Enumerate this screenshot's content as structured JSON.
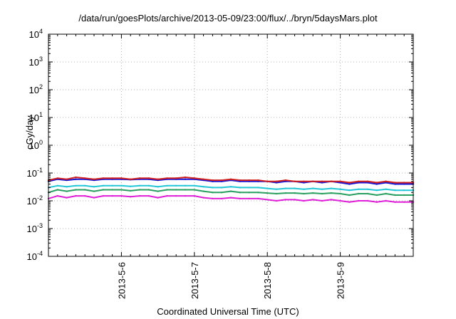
{
  "chart_data": {
    "type": "line",
    "title": "/data/run/goesPlots/archive/2013-05-09/23:00/flux/../bryn/5daysMars.plot",
    "xlabel": "Coordinated Universal Time (UTC)",
    "ylabel": "cGy/day",
    "yscale": "log",
    "ylim": [
      0.0001,
      10000
    ],
    "yticks": [
      {
        "value": 0.0001,
        "base": "10",
        "exp": "-4"
      },
      {
        "value": 0.001,
        "base": "10",
        "exp": "-3"
      },
      {
        "value": 0.01,
        "base": "10",
        "exp": "-2"
      },
      {
        "value": 0.1,
        "base": "10",
        "exp": "-1"
      },
      {
        "value": 1,
        "base": "10",
        "exp": "0"
      },
      {
        "value": 10,
        "base": "10",
        "exp": "1"
      },
      {
        "value": 100,
        "base": "10",
        "exp": "2"
      },
      {
        "value": 1000,
        "base": "10",
        "exp": "3"
      },
      {
        "value": 10000,
        "base": "10",
        "exp": "4"
      }
    ],
    "xlim": [
      "2013-05-05 00:00",
      "2013-05-10 00:00"
    ],
    "xticks": [
      "2013-5-6",
      "2013-5-7",
      "2013-5-8",
      "2013-5-9"
    ],
    "grid": true,
    "x": [
      "2013-05-05 00:00",
      "2013-05-05 03:00",
      "2013-05-05 06:00",
      "2013-05-05 09:00",
      "2013-05-05 12:00",
      "2013-05-05 15:00",
      "2013-05-05 18:00",
      "2013-05-05 21:00",
      "2013-05-06 00:00",
      "2013-05-06 03:00",
      "2013-05-06 06:00",
      "2013-05-06 09:00",
      "2013-05-06 12:00",
      "2013-05-06 15:00",
      "2013-05-06 18:00",
      "2013-05-06 21:00",
      "2013-05-07 00:00",
      "2013-05-07 03:00",
      "2013-05-07 06:00",
      "2013-05-07 09:00",
      "2013-05-07 12:00",
      "2013-05-07 15:00",
      "2013-05-07 18:00",
      "2013-05-07 21:00",
      "2013-05-08 00:00",
      "2013-05-08 03:00",
      "2013-05-08 06:00",
      "2013-05-08 09:00",
      "2013-05-08 12:00",
      "2013-05-08 15:00",
      "2013-05-08 18:00",
      "2013-05-08 21:00",
      "2013-05-09 00:00",
      "2013-05-09 03:00",
      "2013-05-09 06:00",
      "2013-05-09 09:00",
      "2013-05-09 12:00",
      "2013-05-09 15:00",
      "2013-05-09 18:00",
      "2013-05-09 21:00",
      "2013-05-10 00:00"
    ],
    "series": [
      {
        "color": "#1515d8",
        "values": [
          0.05,
          0.06,
          0.055,
          0.06,
          0.06,
          0.055,
          0.06,
          0.06,
          0.06,
          0.058,
          0.06,
          0.06,
          0.055,
          0.06,
          0.06,
          0.06,
          0.06,
          0.055,
          0.05,
          0.05,
          0.055,
          0.05,
          0.05,
          0.05,
          0.05,
          0.045,
          0.05,
          0.05,
          0.045,
          0.05,
          0.045,
          0.05,
          0.045,
          0.04,
          0.045,
          0.045,
          0.04,
          0.045,
          0.04,
          0.04,
          0.04
        ]
      },
      {
        "color": "#d02020",
        "values": [
          0.055,
          0.065,
          0.06,
          0.07,
          0.065,
          0.06,
          0.065,
          0.065,
          0.065,
          0.06,
          0.065,
          0.065,
          0.06,
          0.065,
          0.065,
          0.07,
          0.065,
          0.06,
          0.055,
          0.055,
          0.06,
          0.055,
          0.055,
          0.055,
          0.05,
          0.05,
          0.055,
          0.05,
          0.05,
          0.05,
          0.05,
          0.05,
          0.05,
          0.045,
          0.05,
          0.05,
          0.045,
          0.05,
          0.045,
          0.045,
          0.045
        ]
      },
      {
        "color": "#23c8d8",
        "values": [
          0.03,
          0.035,
          0.032,
          0.035,
          0.035,
          0.032,
          0.035,
          0.035,
          0.035,
          0.033,
          0.035,
          0.035,
          0.032,
          0.035,
          0.035,
          0.035,
          0.035,
          0.032,
          0.03,
          0.03,
          0.032,
          0.03,
          0.03,
          0.03,
          0.028,
          0.026,
          0.028,
          0.028,
          0.026,
          0.028,
          0.026,
          0.028,
          0.026,
          0.024,
          0.026,
          0.026,
          0.024,
          0.026,
          0.024,
          0.024,
          0.024
        ]
      },
      {
        "color": "#2aa060",
        "values": [
          0.02,
          0.025,
          0.022,
          0.025,
          0.025,
          0.022,
          0.025,
          0.025,
          0.025,
          0.023,
          0.025,
          0.025,
          0.022,
          0.025,
          0.025,
          0.025,
          0.025,
          0.022,
          0.02,
          0.02,
          0.022,
          0.02,
          0.02,
          0.02,
          0.019,
          0.018,
          0.019,
          0.019,
          0.018,
          0.019,
          0.018,
          0.019,
          0.018,
          0.016,
          0.018,
          0.018,
          0.016,
          0.018,
          0.016,
          0.016,
          0.016
        ]
      },
      {
        "color": "#e020d8",
        "values": [
          0.012,
          0.015,
          0.013,
          0.015,
          0.015,
          0.013,
          0.015,
          0.015,
          0.015,
          0.014,
          0.015,
          0.015,
          0.013,
          0.015,
          0.015,
          0.015,
          0.015,
          0.013,
          0.012,
          0.012,
          0.013,
          0.012,
          0.012,
          0.012,
          0.011,
          0.01,
          0.011,
          0.011,
          0.01,
          0.011,
          0.01,
          0.011,
          0.01,
          0.009,
          0.01,
          0.01,
          0.009,
          0.01,
          0.009,
          0.009,
          0.009
        ]
      }
    ]
  }
}
